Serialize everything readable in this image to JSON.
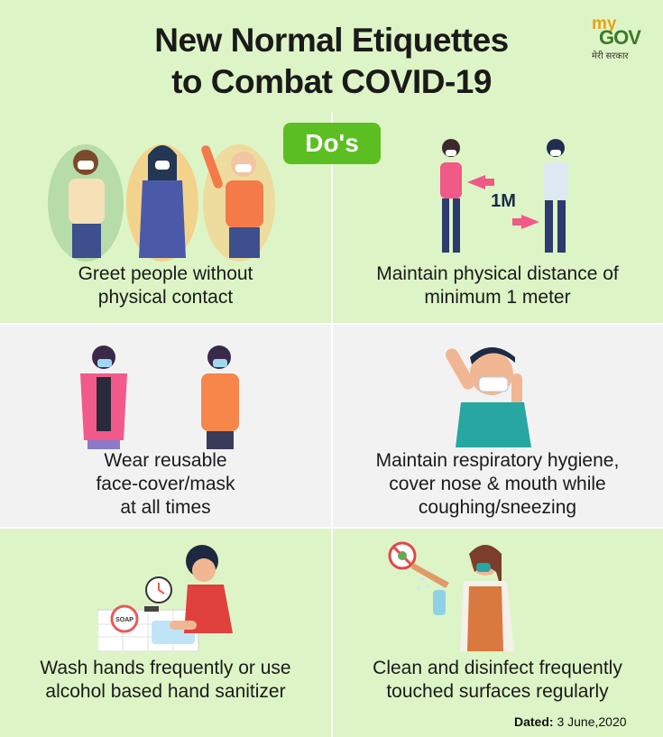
{
  "header": {
    "title_line1": "New Normal Etiquettes",
    "title_line2": "to Combat COVID-19",
    "logo": {
      "my": "my",
      "gov": "GOV",
      "hindi": "मेरी सरकार"
    }
  },
  "badge": "Do's",
  "tips": [
    {
      "lines": [
        "Greet people without",
        "physical contact"
      ],
      "icon": "greeting-people-icon"
    },
    {
      "lines": [
        "Maintain physical distance of",
        "minimum 1 meter"
      ],
      "icon": "distance-icon",
      "distance_label": "1M"
    },
    {
      "lines": [
        "Wear reusable",
        "face-cover/mask",
        "at all times"
      ],
      "icon": "mask-people-icon"
    },
    {
      "lines": [
        "Maintain respiratory hygiene,",
        "cover nose & mouth while",
        "coughing/sneezing"
      ],
      "icon": "sneezing-icon"
    },
    {
      "lines": [
        "Wash hands frequently or use",
        "alcohol based hand sanitizer"
      ],
      "icon": "hand-wash-icon",
      "soap_label": "SOAP"
    },
    {
      "lines": [
        "Clean and disinfect frequently",
        "touched surfaces regularly"
      ],
      "icon": "disinfect-icon"
    }
  ],
  "dated": {
    "label": "Dated:",
    "value": "3 June,2020"
  },
  "colors": {
    "background": "#ddf5c6",
    "alt_background": "#f2f2f2",
    "badge": "#5bbf21",
    "logo_my": "#e8a317",
    "logo_gov": "#3b7a2a"
  }
}
